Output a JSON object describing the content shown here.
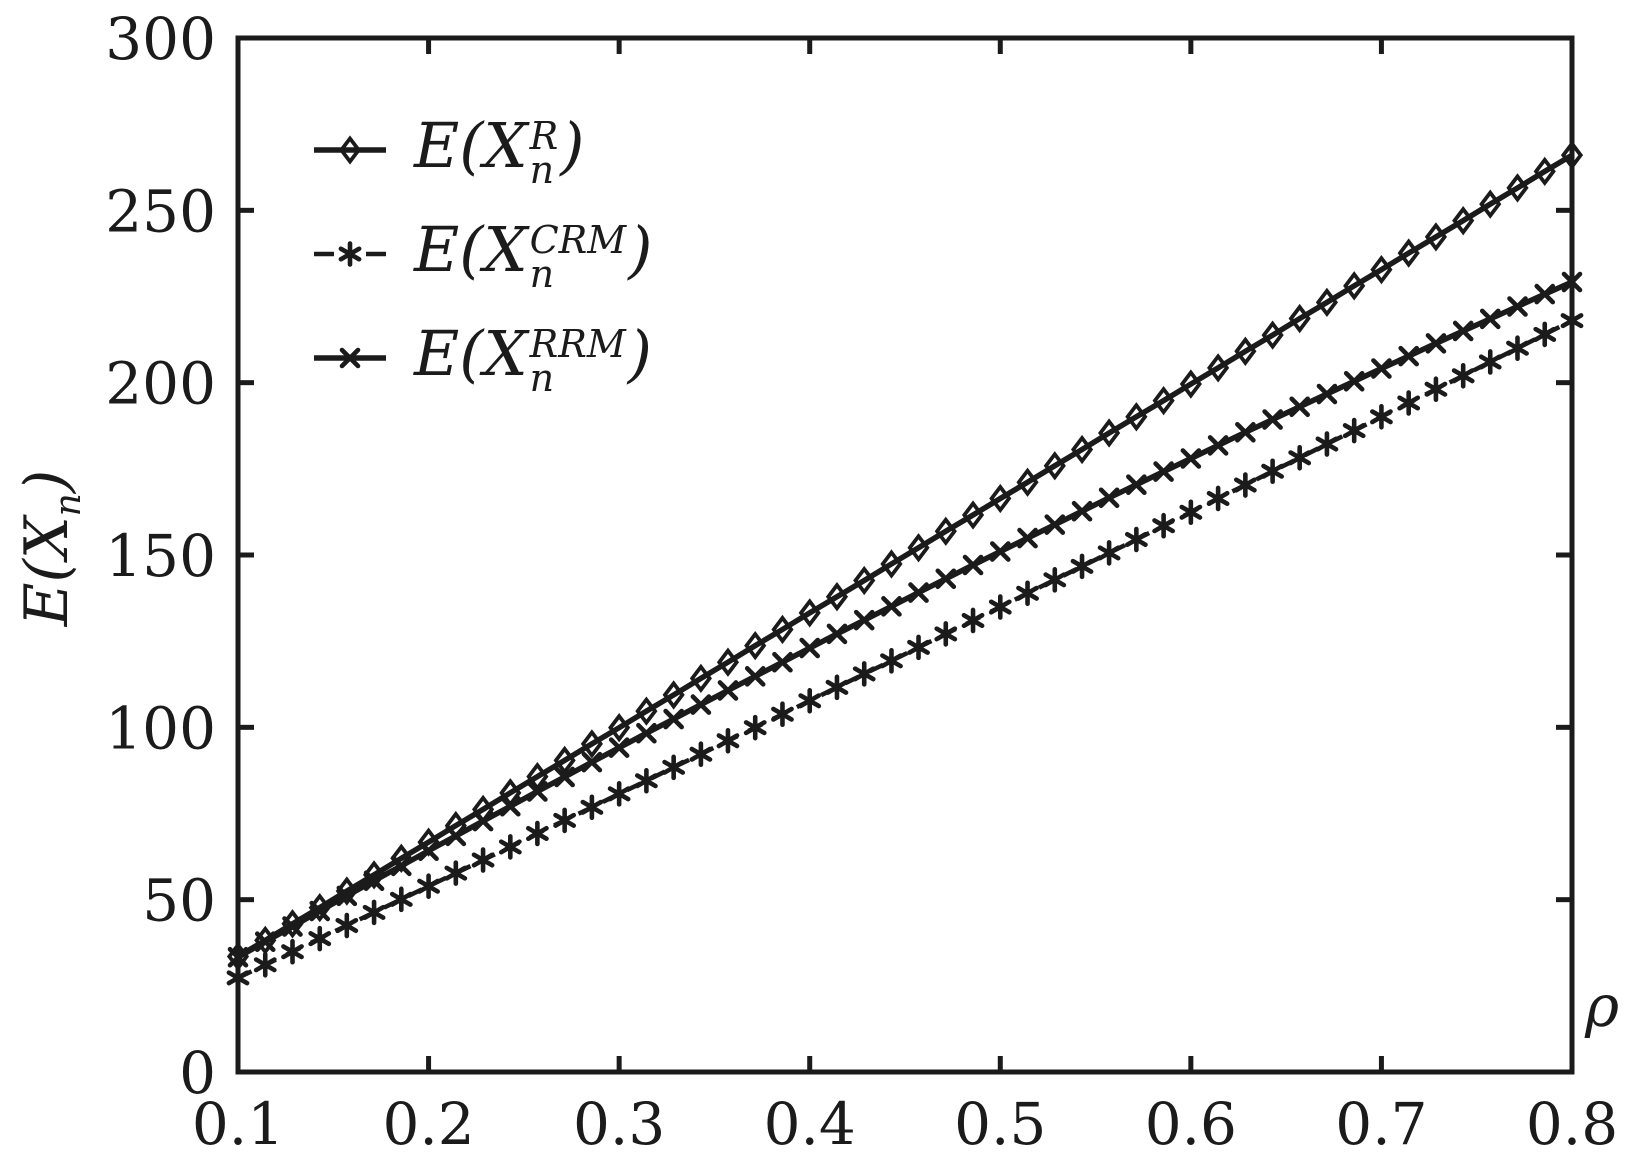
{
  "figure": {
    "background": "#ffffff"
  },
  "chart_data": {
    "type": "line",
    "title": "",
    "xlabel": "ρ",
    "ylabel": {
      "prefix": "E(X",
      "sub": "n",
      "suffix": ")"
    },
    "xlim": [
      0.1,
      0.8
    ],
    "ylim": [
      0,
      300
    ],
    "xticks": [
      0.1,
      0.2,
      0.3,
      0.4,
      0.5,
      0.6,
      0.7,
      0.8
    ],
    "xtick_labels": [
      "0.1",
      "0.2",
      "0.3",
      "0.4",
      "0.5",
      "0.6",
      "0.7",
      "0.8"
    ],
    "yticks": [
      0,
      50,
      100,
      150,
      200,
      250,
      300
    ],
    "ytick_labels": [
      "0",
      "50",
      "100",
      "150",
      "200",
      "250",
      "300"
    ],
    "grid": false,
    "box": true,
    "axis_color": "#1b1b1b",
    "legend_position": "upper-left",
    "x": [
      0.1,
      0.1143,
      0.1286,
      0.1429,
      0.1571,
      0.1714,
      0.1857,
      0.2,
      0.2143,
      0.2286,
      0.2429,
      0.2571,
      0.2714,
      0.2857,
      0.3,
      0.3143,
      0.3286,
      0.3429,
      0.3571,
      0.3714,
      0.3857,
      0.4,
      0.4143,
      0.4286,
      0.4429,
      0.4571,
      0.4714,
      0.4857,
      0.5,
      0.5143,
      0.5286,
      0.5429,
      0.5571,
      0.5714,
      0.5857,
      0.6,
      0.6143,
      0.6286,
      0.6429,
      0.6571,
      0.6714,
      0.6857,
      0.7,
      0.7143,
      0.7286,
      0.7429,
      0.7571,
      0.7714,
      0.7857,
      0.8
    ],
    "series": [
      {
        "key": "R",
        "name": "E(X_n^R)",
        "label": {
          "prefix": "E(X",
          "sup": "R",
          "sub": "n",
          "suffix": ")"
        },
        "marker": "diamond",
        "line_style": "solid",
        "color": "#1b1b1b",
        "values": [
          33.5,
          38.2,
          43.0,
          47.7,
          52.5,
          57.2,
          62.0,
          66.7,
          71.5,
          76.2,
          81.0,
          85.7,
          90.4,
          95.2,
          99.9,
          104.7,
          109.4,
          114.2,
          118.9,
          123.7,
          128.4,
          133.2,
          137.9,
          142.6,
          147.4,
          152.1,
          156.9,
          161.6,
          166.4,
          171.1,
          175.9,
          180.6,
          185.4,
          190.1,
          194.8,
          199.6,
          204.3,
          209.1,
          213.8,
          218.6,
          223.3,
          228.1,
          232.8,
          237.6,
          242.3,
          247.0,
          251.8,
          256.5,
          261.3,
          266.0
        ]
      },
      {
        "key": "CRM",
        "name": "E(X_n^CRM)",
        "label": {
          "prefix": "E(X",
          "sup": "CRM",
          "sub": "n",
          "suffix": ")"
        },
        "marker": "asterisk",
        "line_style": "dashed",
        "color": "#1b1b1b",
        "values": [
          27.3,
          31.1,
          34.9,
          38.7,
          42.5,
          46.3,
          50.1,
          53.9,
          57.7,
          61.5,
          65.3,
          69.2,
          73.0,
          76.8,
          80.7,
          84.5,
          88.4,
          92.2,
          96.1,
          99.9,
          103.8,
          107.7,
          111.6,
          115.5,
          119.3,
          123.2,
          127.1,
          131.0,
          134.9,
          138.9,
          142.8,
          146.7,
          150.6,
          154.5,
          158.5,
          162.4,
          166.4,
          170.3,
          174.3,
          178.2,
          182.2,
          186.1,
          190.1,
          194.1,
          198.1,
          202.0,
          206.0,
          210.0,
          214.0,
          218.0
        ]
      },
      {
        "key": "RRM",
        "name": "E(X_n^RRM)",
        "label": {
          "prefix": "E(X",
          "sup": "RRM",
          "sub": "n",
          "suffix": ")"
        },
        "marker": "x",
        "line_style": "solid",
        "color": "#1b1b1b",
        "values": [
          33.3,
          37.8,
          42.2,
          46.7,
          51.1,
          55.5,
          59.8,
          64.2,
          68.5,
          72.8,
          77.1,
          81.4,
          85.6,
          89.9,
          94.1,
          98.3,
          102.4,
          106.6,
          110.7,
          114.8,
          118.9,
          123.0,
          127.1,
          131.1,
          135.1,
          139.1,
          143.1,
          147.1,
          151.0,
          154.9,
          158.8,
          162.7,
          166.6,
          170.4,
          174.2,
          178.0,
          181.8,
          185.6,
          189.3,
          193.0,
          196.7,
          200.4,
          204.1,
          207.7,
          211.4,
          215.0,
          218.5,
          222.1,
          225.7,
          229.2
        ]
      }
    ]
  }
}
